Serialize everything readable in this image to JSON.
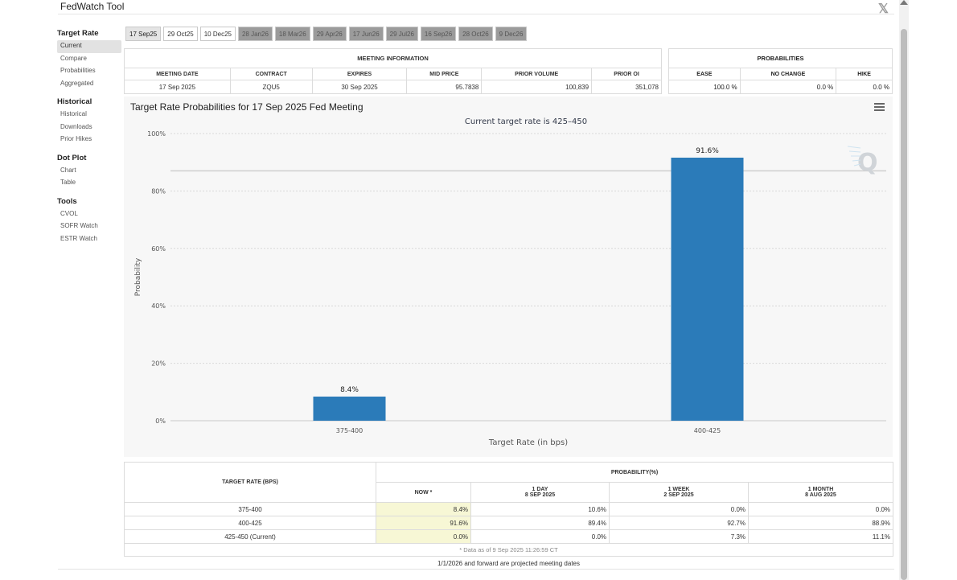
{
  "app": {
    "title": "FedWatch Tool"
  },
  "sidebar": {
    "sections": [
      {
        "heading": "Target Rate",
        "items": [
          "Current",
          "Compare",
          "Probabilities",
          "Aggregated"
        ]
      },
      {
        "heading": "Historical",
        "items": [
          "Historical",
          "Downloads",
          "Prior Hikes"
        ]
      },
      {
        "heading": "Dot Plot",
        "items": [
          "Chart",
          "Table"
        ]
      },
      {
        "heading": "Tools",
        "items": [
          "CVOL",
          "SOFR Watch",
          "ESTR Watch"
        ]
      }
    ],
    "active_item": "Current"
  },
  "tabs": [
    "17 Sep25",
    "29 Oct25",
    "10 Dec25",
    "28 Jan26",
    "18 Mar26",
    "29 Apr26",
    "17 Jun26",
    "29 Jul26",
    "16 Sep26",
    "28 Oct26",
    "9 Dec26"
  ],
  "meeting_info": {
    "title": "MEETING INFORMATION",
    "headers": [
      "MEETING DATE",
      "CONTRACT",
      "EXPIRES",
      "MID PRICE",
      "PRIOR VOLUME",
      "PRIOR OI"
    ],
    "row": [
      "17 Sep 2025",
      "ZQU5",
      "30 Sep 2025",
      "95.7838",
      "100,839",
      "351,078"
    ]
  },
  "probabilities": {
    "title": "PROBABILITIES",
    "headers": [
      "EASE",
      "NO CHANGE",
      "HIKE"
    ],
    "row": [
      "100.0 %",
      "0.0 %",
      "0.0 %"
    ]
  },
  "chart_panel": {
    "title": "Target Rate Probabilities for 17 Sep 2025 Fed Meeting",
    "menu_icon": "hamburger-menu-icon",
    "watermark": "Q"
  },
  "chart_data": {
    "type": "bar",
    "subtitle": "Current target rate is 425–450",
    "categories": [
      "375-400",
      "400-425"
    ],
    "values": [
      8.4,
      91.6
    ],
    "data_labels": [
      "8.4%",
      "91.6%"
    ],
    "xlabel": "Target Rate (in bps)",
    "ylabel": "Probability",
    "ylim": [
      0,
      100
    ],
    "yticks": [
      "0%",
      "20%",
      "40%",
      "60%",
      "80%",
      "100%"
    ],
    "reference_line": 87,
    "bar_color": "#2b7bb9",
    "grid": true
  },
  "prob_table": {
    "target_header": "TARGET RATE (BPS)",
    "prob_header": "PROBABILITY(%)",
    "columns": [
      {
        "line1": "NOW *",
        "line2": ""
      },
      {
        "line1": "1 DAY",
        "line2": "8 SEP 2025"
      },
      {
        "line1": "1 WEEK",
        "line2": "2 SEP 2025"
      },
      {
        "line1": "1 MONTH",
        "line2": "8 AUG 2025"
      }
    ],
    "rows": [
      {
        "rate": "375-400",
        "values": [
          "8.4%",
          "10.6%",
          "0.0%",
          "0.0%"
        ]
      },
      {
        "rate": "400-425",
        "values": [
          "91.6%",
          "89.4%",
          "92.7%",
          "88.9%"
        ]
      },
      {
        "rate": "425-450 (Current)",
        "values": [
          "0.0%",
          "0.0%",
          "7.3%",
          "11.1%"
        ]
      }
    ],
    "data_note": "* Data as of 9 Sep 2025 11:26:59 CT"
  },
  "footnote": "1/1/2026 and forward are projected meeting dates"
}
